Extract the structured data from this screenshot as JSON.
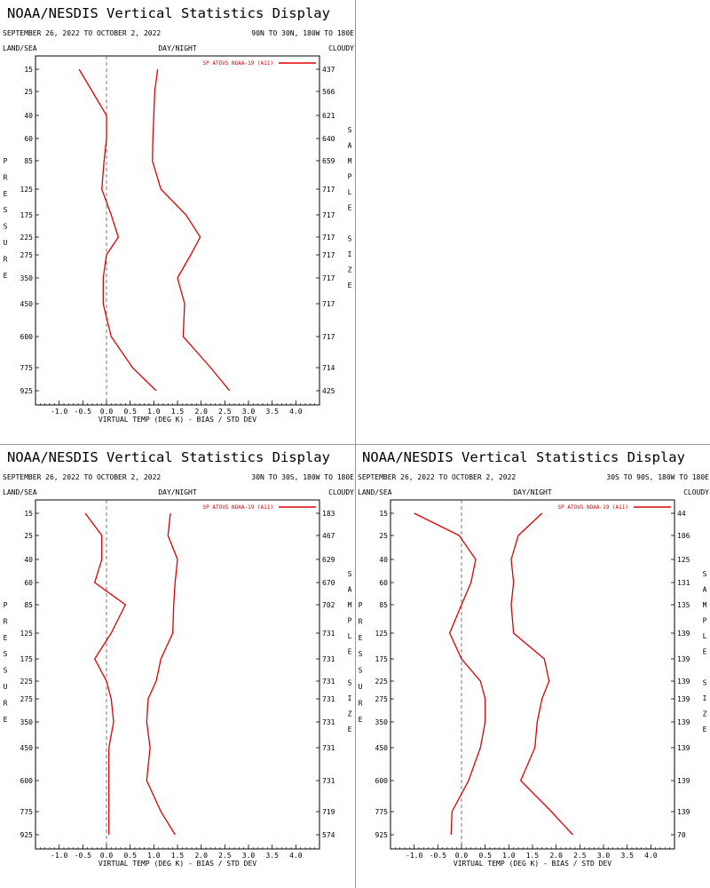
{
  "panels": [
    {
      "title": "NOAA/NESDIS Vertical Statistics Display",
      "date_range": "SEPTEMBER 26, 2022 TO OCTOBER 2, 2022",
      "region": "90N TO 30N, 180W TO 180E",
      "corner_left": "LAND/SEA",
      "corner_center": "DAY/NIGHT",
      "corner_right": "CLOUDY",
      "left_axis_label": "PRESSURE",
      "right_axis_label": "SAMPLE SIZE"
    },
    {
      "title": "NOAA/NESDIS Vertical Statistics Display",
      "date_range": "SEPTEMBER 26, 2022 TO OCTOBER 2, 2022",
      "region": "30N TO 30S, 180W TO 180E",
      "corner_left": "LAND/SEA",
      "corner_center": "DAY/NIGHT",
      "corner_right": "CLOUDY",
      "left_axis_label": "PRESSURE",
      "right_axis_label": "SAMPLE SIZE"
    },
    {
      "title": "NOAA/NESDIS Vertical Statistics Display",
      "date_range": "SEPTEMBER 26, 2022 TO OCTOBER 2, 2022",
      "region": "30S TO 90S, 180W TO 180E",
      "corner_left": "LAND/SEA",
      "corner_center": "DAY/NIGHT",
      "corner_right": "CLOUDY",
      "left_axis_label": "PRESSURE",
      "right_axis_label": "SAMPLE SIZE"
    }
  ],
  "chart_data": [
    {
      "type": "line",
      "xlabel": "VIRTUAL TEMP (DEG K) - BIAS / STD DEV",
      "xlim": [
        -1.5,
        4.5
      ],
      "x_ticks": [
        -1.0,
        -0.5,
        0.0,
        0.5,
        1.0,
        1.5,
        2.0,
        2.5,
        3.0,
        3.5,
        4.0
      ],
      "pressure_levels": [
        15,
        25,
        40,
        60,
        85,
        125,
        175,
        225,
        275,
        350,
        450,
        600,
        775,
        925
      ],
      "sample_sizes": [
        437,
        566,
        621,
        640,
        659,
        717,
        717,
        717,
        717,
        717,
        717,
        717,
        714,
        425
      ],
      "legend_label": "SP ATOVS NOAA-19 (A11)",
      "legend_placement": "top-right",
      "color": "#dd0000",
      "bias": [
        -0.58,
        -0.3,
        0.0,
        0.0,
        -0.05,
        -0.1,
        0.1,
        0.25,
        0.0,
        -0.07,
        -0.07,
        0.1,
        0.55,
        1.05
      ],
      "std_dev": [
        1.08,
        1.02,
        1.0,
        0.98,
        0.97,
        1.15,
        1.68,
        1.98,
        1.78,
        1.5,
        1.65,
        1.62,
        2.2,
        2.6
      ]
    },
    {
      "type": "line",
      "xlabel": "VIRTUAL TEMP (DEG K) - BIAS / STD DEV",
      "xlim": [
        -1.5,
        4.5
      ],
      "x_ticks": [
        -1.0,
        -0.5,
        0.0,
        0.5,
        1.0,
        1.5,
        2.0,
        2.5,
        3.0,
        3.5,
        4.0
      ],
      "pressure_levels": [
        15,
        25,
        40,
        60,
        85,
        125,
        175,
        225,
        275,
        350,
        450,
        600,
        775,
        925
      ],
      "sample_sizes": [
        183,
        467,
        629,
        670,
        702,
        731,
        731,
        731,
        731,
        731,
        731,
        731,
        719,
        574
      ],
      "legend_label": "SP ATOVS NOAA-19 (A11)",
      "legend_placement": "top-right",
      "color": "#dd0000",
      "bias": [
        -0.45,
        -0.1,
        -0.1,
        -0.25,
        0.4,
        0.1,
        -0.25,
        0.0,
        0.1,
        0.15,
        0.05,
        0.05,
        0.05,
        0.05
      ],
      "std_dev": [
        1.35,
        1.3,
        1.5,
        1.45,
        1.42,
        1.4,
        1.15,
        1.05,
        0.88,
        0.85,
        0.92,
        0.85,
        1.15,
        1.45
      ]
    },
    {
      "type": "line",
      "xlabel": "VIRTUAL TEMP (DEG K) - BIAS / STD DEV",
      "xlim": [
        -1.5,
        4.5
      ],
      "x_ticks": [
        -1.0,
        -0.5,
        0.0,
        0.5,
        1.0,
        1.5,
        2.0,
        2.5,
        3.0,
        3.5,
        4.0
      ],
      "pressure_levels": [
        15,
        25,
        40,
        60,
        85,
        125,
        175,
        225,
        275,
        350,
        450,
        600,
        775,
        925
      ],
      "sample_sizes": [
        44,
        106,
        125,
        131,
        135,
        139,
        139,
        139,
        139,
        139,
        139,
        139,
        139,
        70
      ],
      "legend_label": "SP ATOVS NOAA-19 (A11)",
      "legend_placement": "top-right",
      "color": "#dd0000",
      "bias": [
        -1.0,
        -0.05,
        0.3,
        0.2,
        0.0,
        -0.25,
        0.0,
        0.4,
        0.5,
        0.5,
        0.4,
        0.15,
        -0.2,
        -0.22
      ],
      "std_dev": [
        1.7,
        1.2,
        1.05,
        1.1,
        1.05,
        1.1,
        1.75,
        1.85,
        1.7,
        1.6,
        1.55,
        1.25,
        1.9,
        2.35
      ]
    }
  ]
}
